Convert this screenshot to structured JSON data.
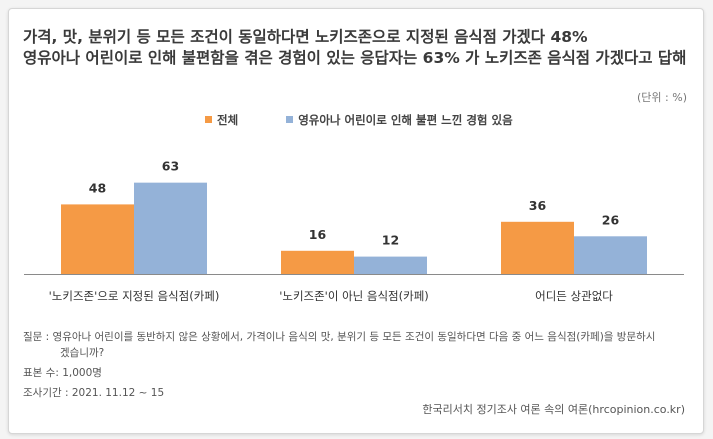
{
  "title_lines": [
    "가격, 맛, 분위기 등 모든 조건이 동일하다면 노키즈존으로 지정된 음식점 가겠다 48%",
    "영유아나 어린이로 인해 불편함을 겪은 경험이 있는 응답자는 63% 가 노키즈존 음식점 가겠다고 답해"
  ],
  "unit": "(단위 : %)",
  "notes": {
    "question": "질문 : 영유아나 어린이를 동반하지 않은 상황에서, 가격이나 음식의 맛, 분위기 등 모든 조건이 동일하다면 다음 중 어느 음식점(카페)을 방문하시겠습니까?",
    "sample": "표본 수: 1,000명",
    "period": "조사기간 : 2021. 11.12 ~ 15"
  },
  "source": "한국리서치 정기조사 여론 속의 여론(hrcopinion.co.kr)",
  "chart_data": {
    "type": "bar",
    "categories": [
      "'노키즈존'으로 지정된 음식점(카페)",
      "'노키즈존'이 아닌 음식점(카페)",
      "어디든 상관없다"
    ],
    "series": [
      {
        "name": "전체",
        "color": "#f59a45",
        "values": [
          48,
          16,
          36
        ]
      },
      {
        "name": "영유아나 어린이로 인해 불편 느낀 경험 있음",
        "color": "#94b2d8",
        "values": [
          63,
          12,
          26
        ]
      }
    ],
    "ylim": [
      0,
      100
    ],
    "grid": false,
    "legend": "top"
  }
}
